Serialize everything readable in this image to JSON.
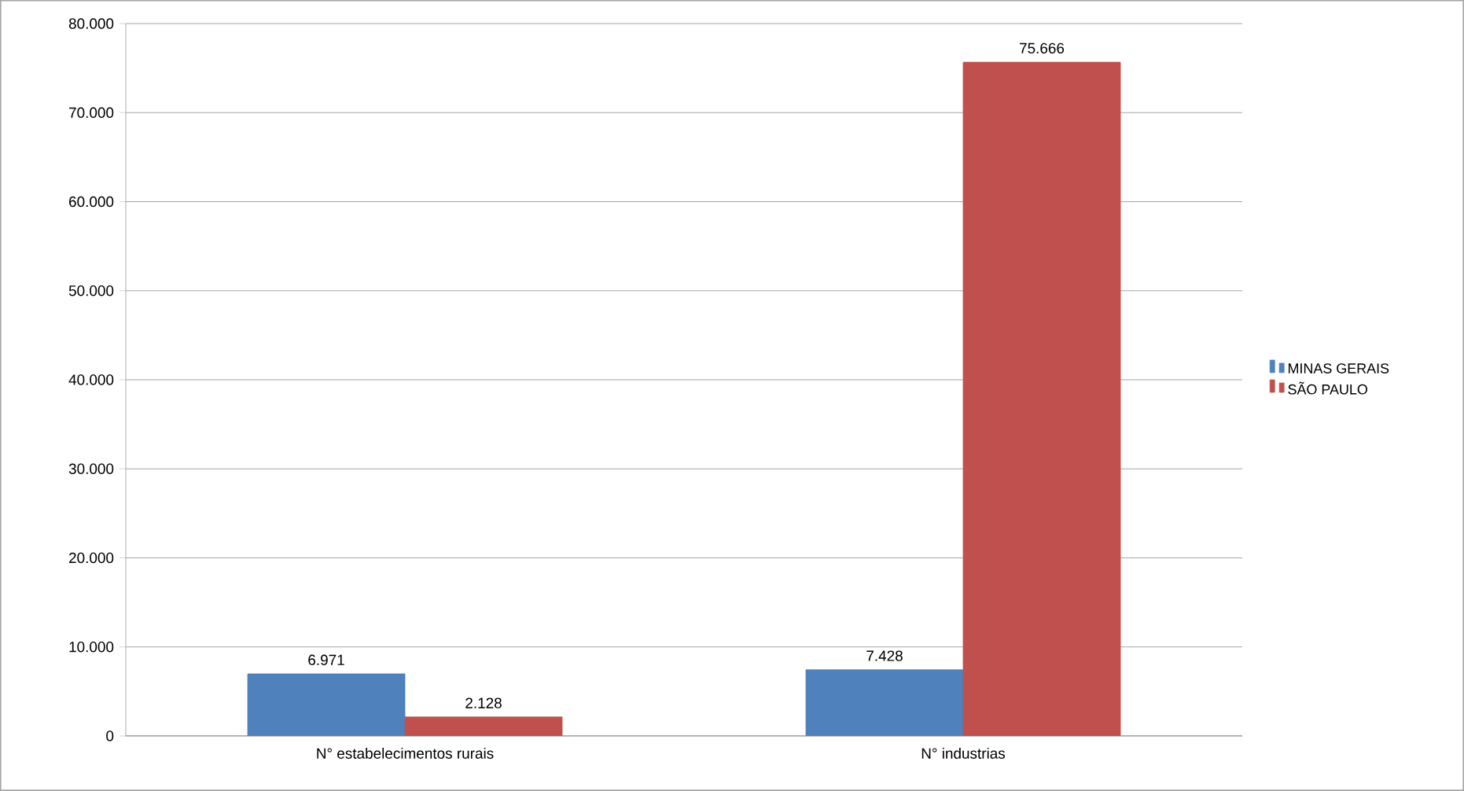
{
  "chart_data": {
    "type": "bar",
    "categories": [
      "N° estabelecimentos rurais",
      "N° industrias"
    ],
    "series": [
      {
        "name": "MINAS GERAIS",
        "color": "#4f81bd",
        "values": [
          6971,
          7428
        ],
        "value_labels": [
          "6.971",
          "7.428"
        ]
      },
      {
        "name": "SÃO PAULO",
        "color": "#c0504d",
        "values": [
          2128,
          75666
        ],
        "value_labels": [
          "2.128",
          "75.666"
        ]
      }
    ],
    "ylim": [
      0,
      80000
    ],
    "yticks": [
      {
        "value": 0,
        "label": "0"
      },
      {
        "value": 10000,
        "label": "10.000"
      },
      {
        "value": 20000,
        "label": "20.000"
      },
      {
        "value": 30000,
        "label": "30.000"
      },
      {
        "value": 40000,
        "label": "40.000"
      },
      {
        "value": 50000,
        "label": "50.000"
      },
      {
        "value": 60000,
        "label": "60.000"
      },
      {
        "value": 70000,
        "label": "70.000"
      },
      {
        "value": 80000,
        "label": "80.000"
      }
    ],
    "grid": "y",
    "legend": "right"
  }
}
